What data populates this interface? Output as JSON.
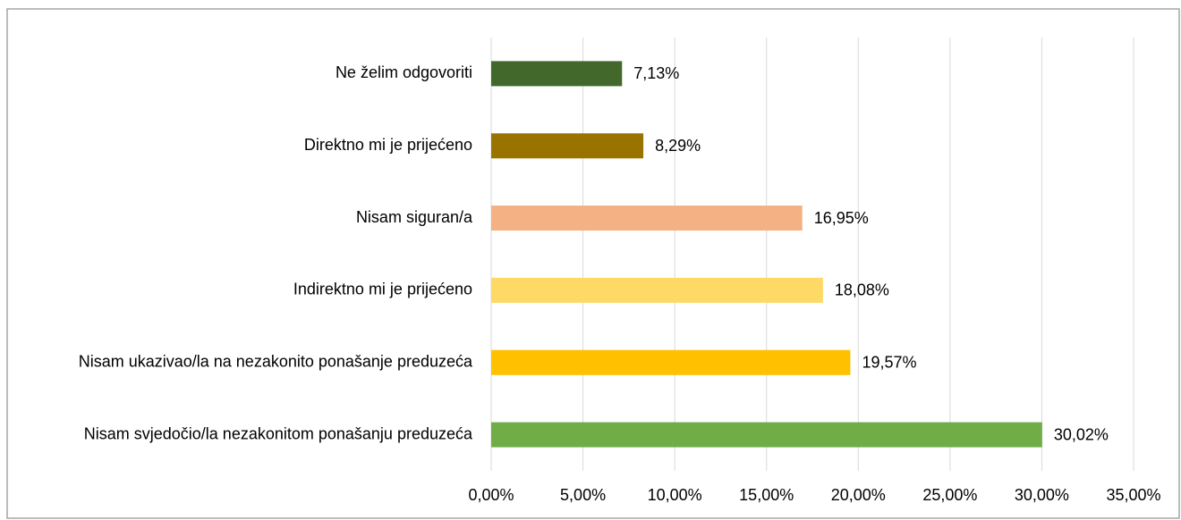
{
  "chart_data": {
    "type": "bar",
    "orientation": "horizontal",
    "categories": [
      "Ne želim odgovoriti",
      "Direktno mi je prijećeno",
      "Nisam siguran/a",
      "Indirektno mi je prijećeno",
      "Nisam ukazivao/la na nezakonito ponašanje preduzeća",
      "Nisam svjedočio/la nezakonitom ponašanju preduzeća"
    ],
    "values": [
      7.13,
      8.29,
      16.95,
      18.08,
      19.57,
      30.02
    ],
    "value_labels": [
      "7,13%",
      "8,29%",
      "16,95%",
      "18,08%",
      "19,57%",
      "30,02%"
    ],
    "colors": [
      "#43682b",
      "#997300",
      "#f4b183",
      "#ffd966",
      "#ffc000",
      "#70ad47"
    ],
    "xlim": [
      0,
      35
    ],
    "xticks": [
      {
        "value": 0,
        "label": "0,00%"
      },
      {
        "value": 5,
        "label": "5,00%"
      },
      {
        "value": 10,
        "label": "10,00%"
      },
      {
        "value": 15,
        "label": "15,00%"
      },
      {
        "value": 20,
        "label": "20,00%"
      },
      {
        "value": 25,
        "label": "25,00%"
      },
      {
        "value": 30,
        "label": "30,00%"
      },
      {
        "value": 35,
        "label": "35,00%"
      }
    ],
    "grid": true
  }
}
